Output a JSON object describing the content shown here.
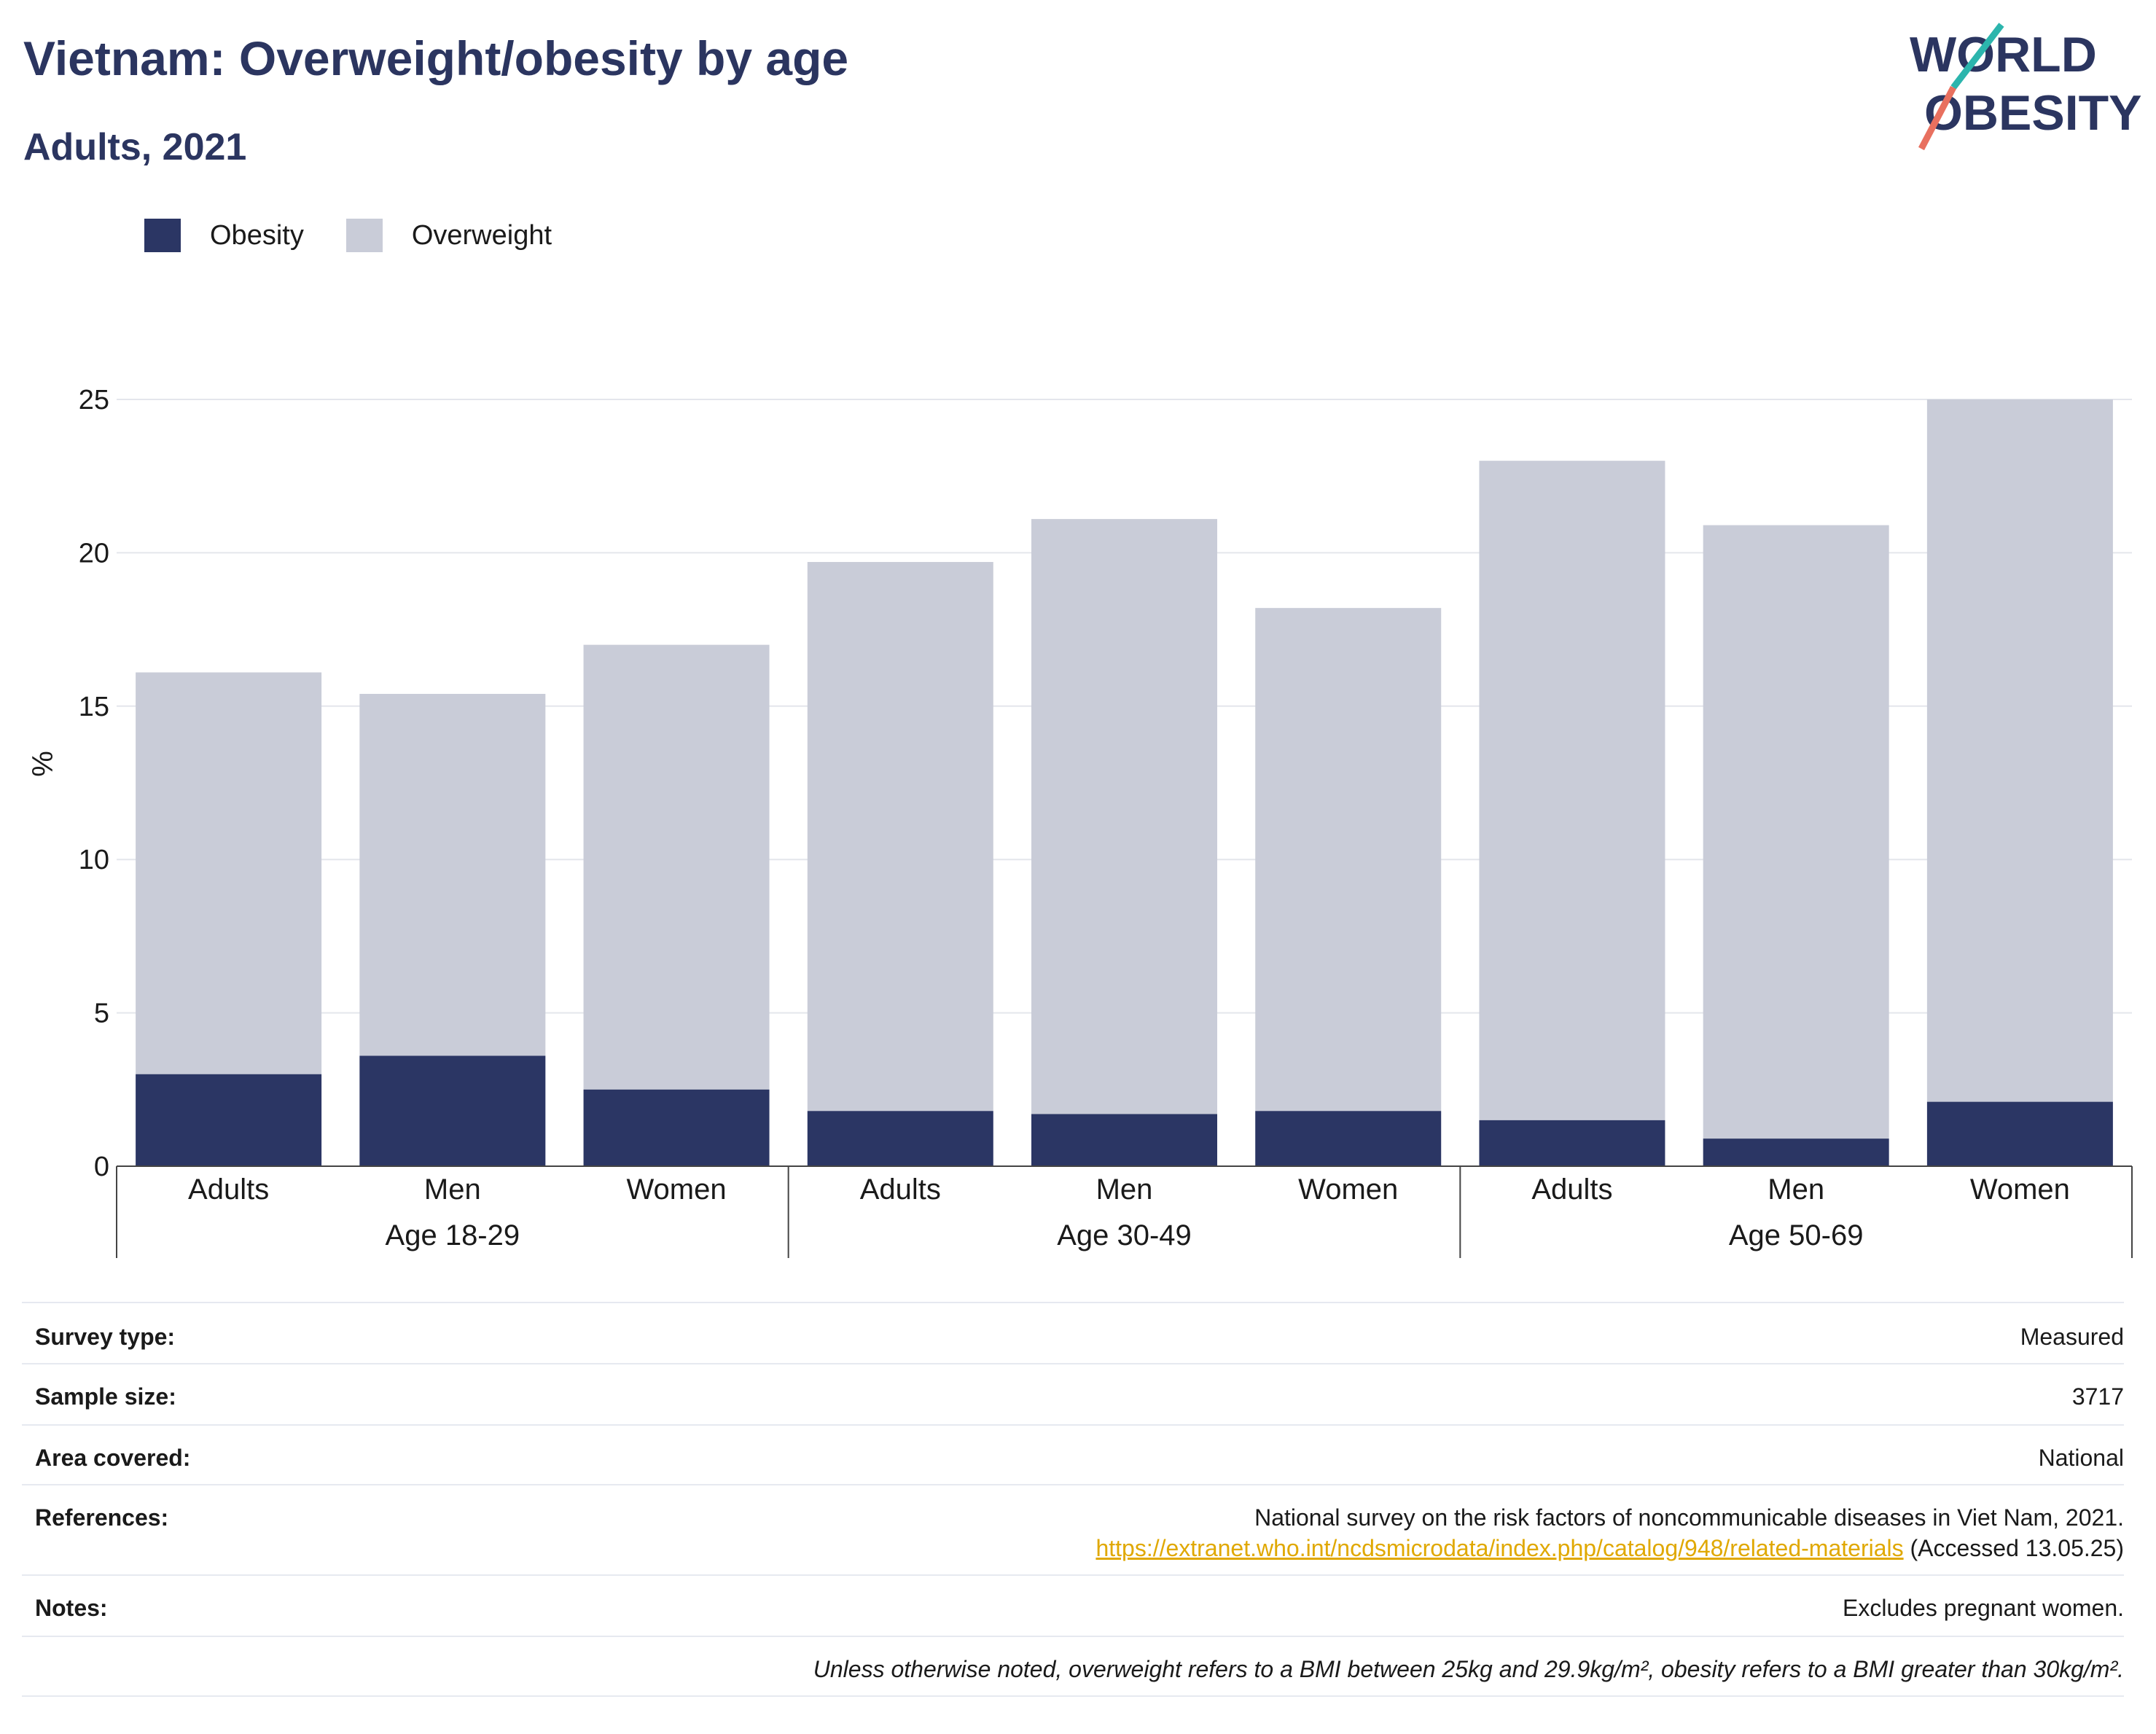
{
  "header": {
    "title": "Vietnam: Overweight/obesity by age",
    "subtitle": "Adults, 2021"
  },
  "logo": {
    "line1": "WORLD",
    "line2": "OBESITY",
    "accent_teal": "#2cb5ad",
    "accent_coral": "#e8705f"
  },
  "colors": {
    "obesity": "#2b3664",
    "overweight": "#c9ccd8",
    "title": "#2b3560",
    "link": "#e0a800"
  },
  "chart_data": {
    "type": "bar",
    "stacked": true,
    "ylabel": "%",
    "ylim": [
      0,
      25
    ],
    "yticks": [
      0,
      5,
      10,
      15,
      20,
      25
    ],
    "grid": true,
    "legend_position": "top-left",
    "groups": [
      "Age 18-29",
      "Age 30-49",
      "Age 50-69"
    ],
    "categories": [
      "Adults",
      "Men",
      "Women",
      "Adults",
      "Men",
      "Women",
      "Adults",
      "Men",
      "Women"
    ],
    "series": [
      {
        "name": "Obesity",
        "values": [
          3.0,
          3.6,
          2.5,
          1.8,
          1.7,
          1.8,
          1.5,
          0.9,
          2.1
        ]
      },
      {
        "name": "Overweight",
        "values": [
          13.1,
          11.8,
          14.5,
          17.9,
          19.4,
          16.4,
          21.5,
          20.0,
          22.9
        ]
      }
    ]
  },
  "info": {
    "survey_type_label": "Survey type:",
    "survey_type_value": "Measured",
    "sample_size_label": "Sample size:",
    "sample_size_value": "3717",
    "area_label": "Area covered:",
    "area_value": "National",
    "references_label": "References:",
    "references_text": "National survey on the risk factors of noncommunicable diseases in Viet Nam, 2021.",
    "references_link": "https://extranet.who.int/ncdsmicrodata/index.php/catalog/948/related-materials",
    "references_accessed": " (Accessed 13.05.25)",
    "notes_label": "Notes:",
    "notes_value": "Excludes pregnant women.",
    "footnote": "Unless otherwise noted, overweight refers to a BMI between 25kg and 29.9kg/m², obesity refers to a BMI greater than 30kg/m²."
  }
}
